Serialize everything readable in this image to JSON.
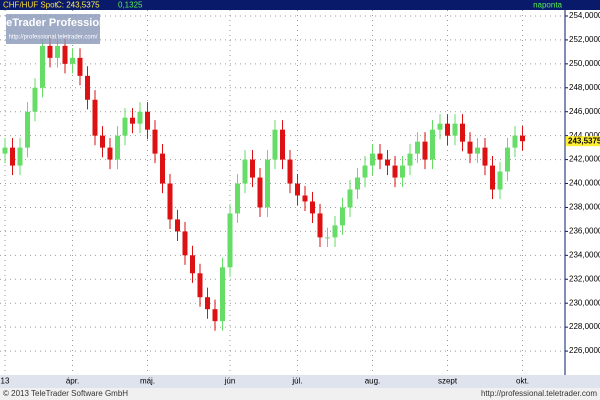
{
  "header": {
    "symbol": "CHF/HUF Spot",
    "close_label": "C: 243,5375",
    "change": "0,1325",
    "frequency": "naponta"
  },
  "watermark": {
    "title": "TeleTrader Professional",
    "url": "http://professional.teletrader.com/"
  },
  "footer": {
    "copyright": "© 2013 TeleTrader Software GmbH",
    "url": "http://professional.teletrader.com"
  },
  "chart_data": {
    "type": "candlestick",
    "categories": [
      "13",
      null,
      null,
      null,
      null,
      null,
      null,
      null,
      null,
      "ápr.",
      null,
      null,
      null,
      null,
      null,
      null,
      null,
      null,
      null,
      "máj.",
      null,
      null,
      null,
      null,
      null,
      null,
      null,
      null,
      null,
      null,
      "jún",
      null,
      null,
      null,
      null,
      null,
      null,
      null,
      null,
      "júl.",
      null,
      null,
      null,
      null,
      null,
      null,
      null,
      null,
      null,
      "aug.",
      null,
      null,
      null,
      null,
      null,
      null,
      null,
      null,
      null,
      "szept",
      null,
      null,
      null,
      null,
      null,
      null,
      null,
      null,
      null,
      "okt."
    ],
    "open": [
      242.5,
      243,
      241.5,
      243,
      246,
      248,
      251.5,
      250.5,
      251.5,
      250,
      250.5,
      249,
      247,
      244,
      243,
      242,
      244,
      245.5,
      245,
      246,
      244.5,
      242.5,
      240,
      237,
      236,
      234,
      232.5,
      230.5,
      229.5,
      228.5,
      233,
      237.5,
      240,
      242,
      240.5,
      238,
      242,
      244.5,
      242,
      240,
      239,
      238.5,
      237.5,
      235.5,
      235.5,
      236.5,
      238,
      239.5,
      240.5,
      241.5,
      242.5,
      242,
      241.5,
      240.5,
      241.5,
      242.5,
      243.5,
      242,
      244.5,
      245,
      244,
      245,
      243.5,
      242.5,
      243,
      241.5,
      239.5,
      241,
      243,
      244
    ],
    "high": [
      243.8,
      243.8,
      243.8,
      246.8,
      248.8,
      252.3,
      252.3,
      252.3,
      252.3,
      251.3,
      251.3,
      249.8,
      247.8,
      244.8,
      243.8,
      244.8,
      246.3,
      246.3,
      246.8,
      246.8,
      245.3,
      243.3,
      240.8,
      237.8,
      236.8,
      234.8,
      233.3,
      231.3,
      230.3,
      233.8,
      238.3,
      240.8,
      242.8,
      242.8,
      241.3,
      242.8,
      245.3,
      245.3,
      242.8,
      240.8,
      239.8,
      239.3,
      238.3,
      236.3,
      237.3,
      238.8,
      240.3,
      241.3,
      242.3,
      243.3,
      243.3,
      242.8,
      242.3,
      242.3,
      243.3,
      244.3,
      244.3,
      245.3,
      245.8,
      245.8,
      245.8,
      245.8,
      244.3,
      243.8,
      243.8,
      242.3,
      241.8,
      243.8,
      244.8,
      244.8
    ],
    "low": [
      241.7,
      240.7,
      240.7,
      242.2,
      245.2,
      247.2,
      249.7,
      249.7,
      249.2,
      249.2,
      248.2,
      246.2,
      243.2,
      242.2,
      241.2,
      241.2,
      243.2,
      244.2,
      244.2,
      243.7,
      241.7,
      239.2,
      236.2,
      235.2,
      233.2,
      231.7,
      229.7,
      228.7,
      227.7,
      227.7,
      232.2,
      236.7,
      239.2,
      239.7,
      237.2,
      237.2,
      241.2,
      241.2,
      239.2,
      238.2,
      237.7,
      236.7,
      234.7,
      234.7,
      234.7,
      235.7,
      237.2,
      238.7,
      239.7,
      240.7,
      241.2,
      240.7,
      239.7,
      239.7,
      240.7,
      241.7,
      241.2,
      241.2,
      243.7,
      243.2,
      243.2,
      242.7,
      241.7,
      241.7,
      240.7,
      238.7,
      238.7,
      240.2,
      242.2,
      242.74
    ],
    "close": [
      243,
      241.5,
      243,
      246,
      248,
      251.5,
      250.5,
      251.5,
      250,
      250.5,
      249,
      247,
      244,
      243,
      242,
      244,
      245.5,
      245,
      246,
      244.5,
      242.5,
      240,
      237,
      236,
      234,
      232.5,
      230.5,
      229.5,
      228.5,
      233,
      237.5,
      240,
      242,
      240.5,
      238,
      242,
      244.5,
      242,
      240,
      239,
      238.5,
      237.5,
      235.5,
      235.5,
      236.5,
      238,
      239.5,
      240.5,
      241.5,
      242.5,
      242,
      241.5,
      240.5,
      241.5,
      242.5,
      243.5,
      242,
      244.5,
      245,
      244,
      245,
      243.5,
      242.5,
      243,
      241.5,
      239.5,
      241,
      243,
      244,
      243.5375
    ],
    "up_color": "#66dd66",
    "down_color": "#dd1111",
    "ylim": [
      224,
      254.5
    ],
    "yticks": [
      {
        "value": 226,
        "label": "226,0000"
      },
      {
        "value": 228,
        "label": "228,0000"
      },
      {
        "value": 230,
        "label": "230,0000"
      },
      {
        "value": 232,
        "label": "232,0000"
      },
      {
        "value": 234,
        "label": "234,0000"
      },
      {
        "value": 236,
        "label": "236,0000"
      },
      {
        "value": 238,
        "label": "238,0000"
      },
      {
        "value": 240,
        "label": "240,0000"
      },
      {
        "value": 242,
        "label": "242,0000"
      },
      {
        "value": 244,
        "label": "244,0000"
      },
      {
        "value": 246,
        "label": "246,0000"
      },
      {
        "value": 248,
        "label": "248,0000"
      },
      {
        "value": 250,
        "label": "250,0000"
      },
      {
        "value": 252,
        "label": "252,0000"
      },
      {
        "value": 254,
        "label": "254,0000"
      }
    ],
    "last_marker": {
      "value": 243.5375,
      "label": "243,5375"
    },
    "grid": true
  }
}
